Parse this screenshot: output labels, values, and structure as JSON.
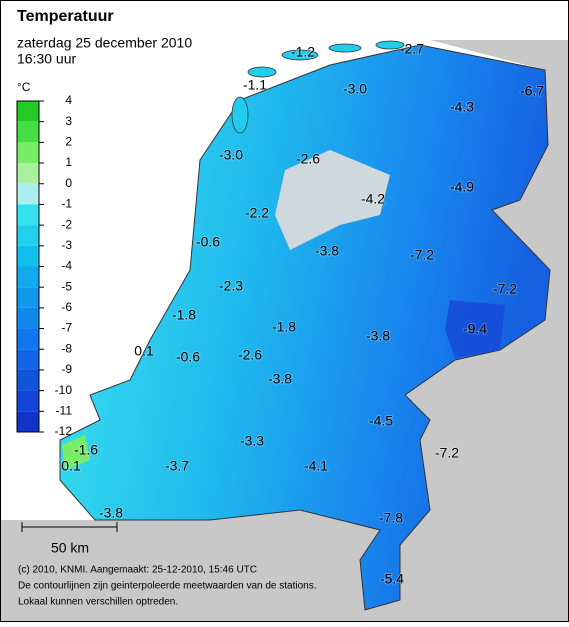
{
  "header": {
    "title": "Temperatuur",
    "date": "zaterdag 25 december 2010",
    "time": "16:30 uur"
  },
  "legend": {
    "unit": "°C",
    "ticks": [
      4,
      3,
      2,
      1,
      0,
      -1,
      -2,
      -3,
      -4,
      -5,
      -6,
      -7,
      -8,
      -9,
      -10,
      -11,
      -12
    ],
    "colors": [
      "#22cc22",
      "#44dd44",
      "#77ee66",
      "#aaf0a0",
      "#aaeeee",
      "#33e0ee",
      "#22d0ee",
      "#11c0ee",
      "#11aaee",
      "#1199ee",
      "#1188ee",
      "#1177ee",
      "#1166e8",
      "#1155dd",
      "#1144d8",
      "#1133cc"
    ]
  },
  "stations": [
    {
      "label": "-1.2"
    },
    {
      "label": "-2.7"
    },
    {
      "label": "-1.1"
    },
    {
      "label": "-3.0"
    },
    {
      "label": "-4.3"
    },
    {
      "label": "-6.7"
    },
    {
      "label": "-3.0"
    },
    {
      "label": "-2.6"
    },
    {
      "label": "-4.9"
    },
    {
      "label": "-4.2"
    },
    {
      "label": "-2.2"
    },
    {
      "label": "-0.6"
    },
    {
      "label": "-3.8"
    },
    {
      "label": "-7.2"
    },
    {
      "label": "-7.2"
    },
    {
      "label": "-2.3"
    },
    {
      "label": "-1.8"
    },
    {
      "label": "-1.8"
    },
    {
      "label": "-9.4"
    },
    {
      "label": "-3.8"
    },
    {
      "label": "0.1"
    },
    {
      "label": "-0.6"
    },
    {
      "label": "-2.6"
    },
    {
      "label": "-3.8"
    },
    {
      "label": "-4.5"
    },
    {
      "label": "-3.3"
    },
    {
      "label": "-7.2"
    },
    {
      "label": "-1.6"
    },
    {
      "label": "0.1"
    },
    {
      "label": "-3.7"
    },
    {
      "label": "-4.1"
    },
    {
      "label": "-7.8"
    },
    {
      "label": "-3.8"
    },
    {
      "label": "-5.4"
    }
  ],
  "scale_bar": {
    "label": "50 km"
  },
  "footer": [
    "(c) 2010, KNMI. Aangemaakt: 25-12-2010, 15:46 UTC",
    "De contourlijnen zijn geinterpoleerde meetwaarden van de stations.",
    "Lokaal kunnen verschillen optreden."
  ]
}
